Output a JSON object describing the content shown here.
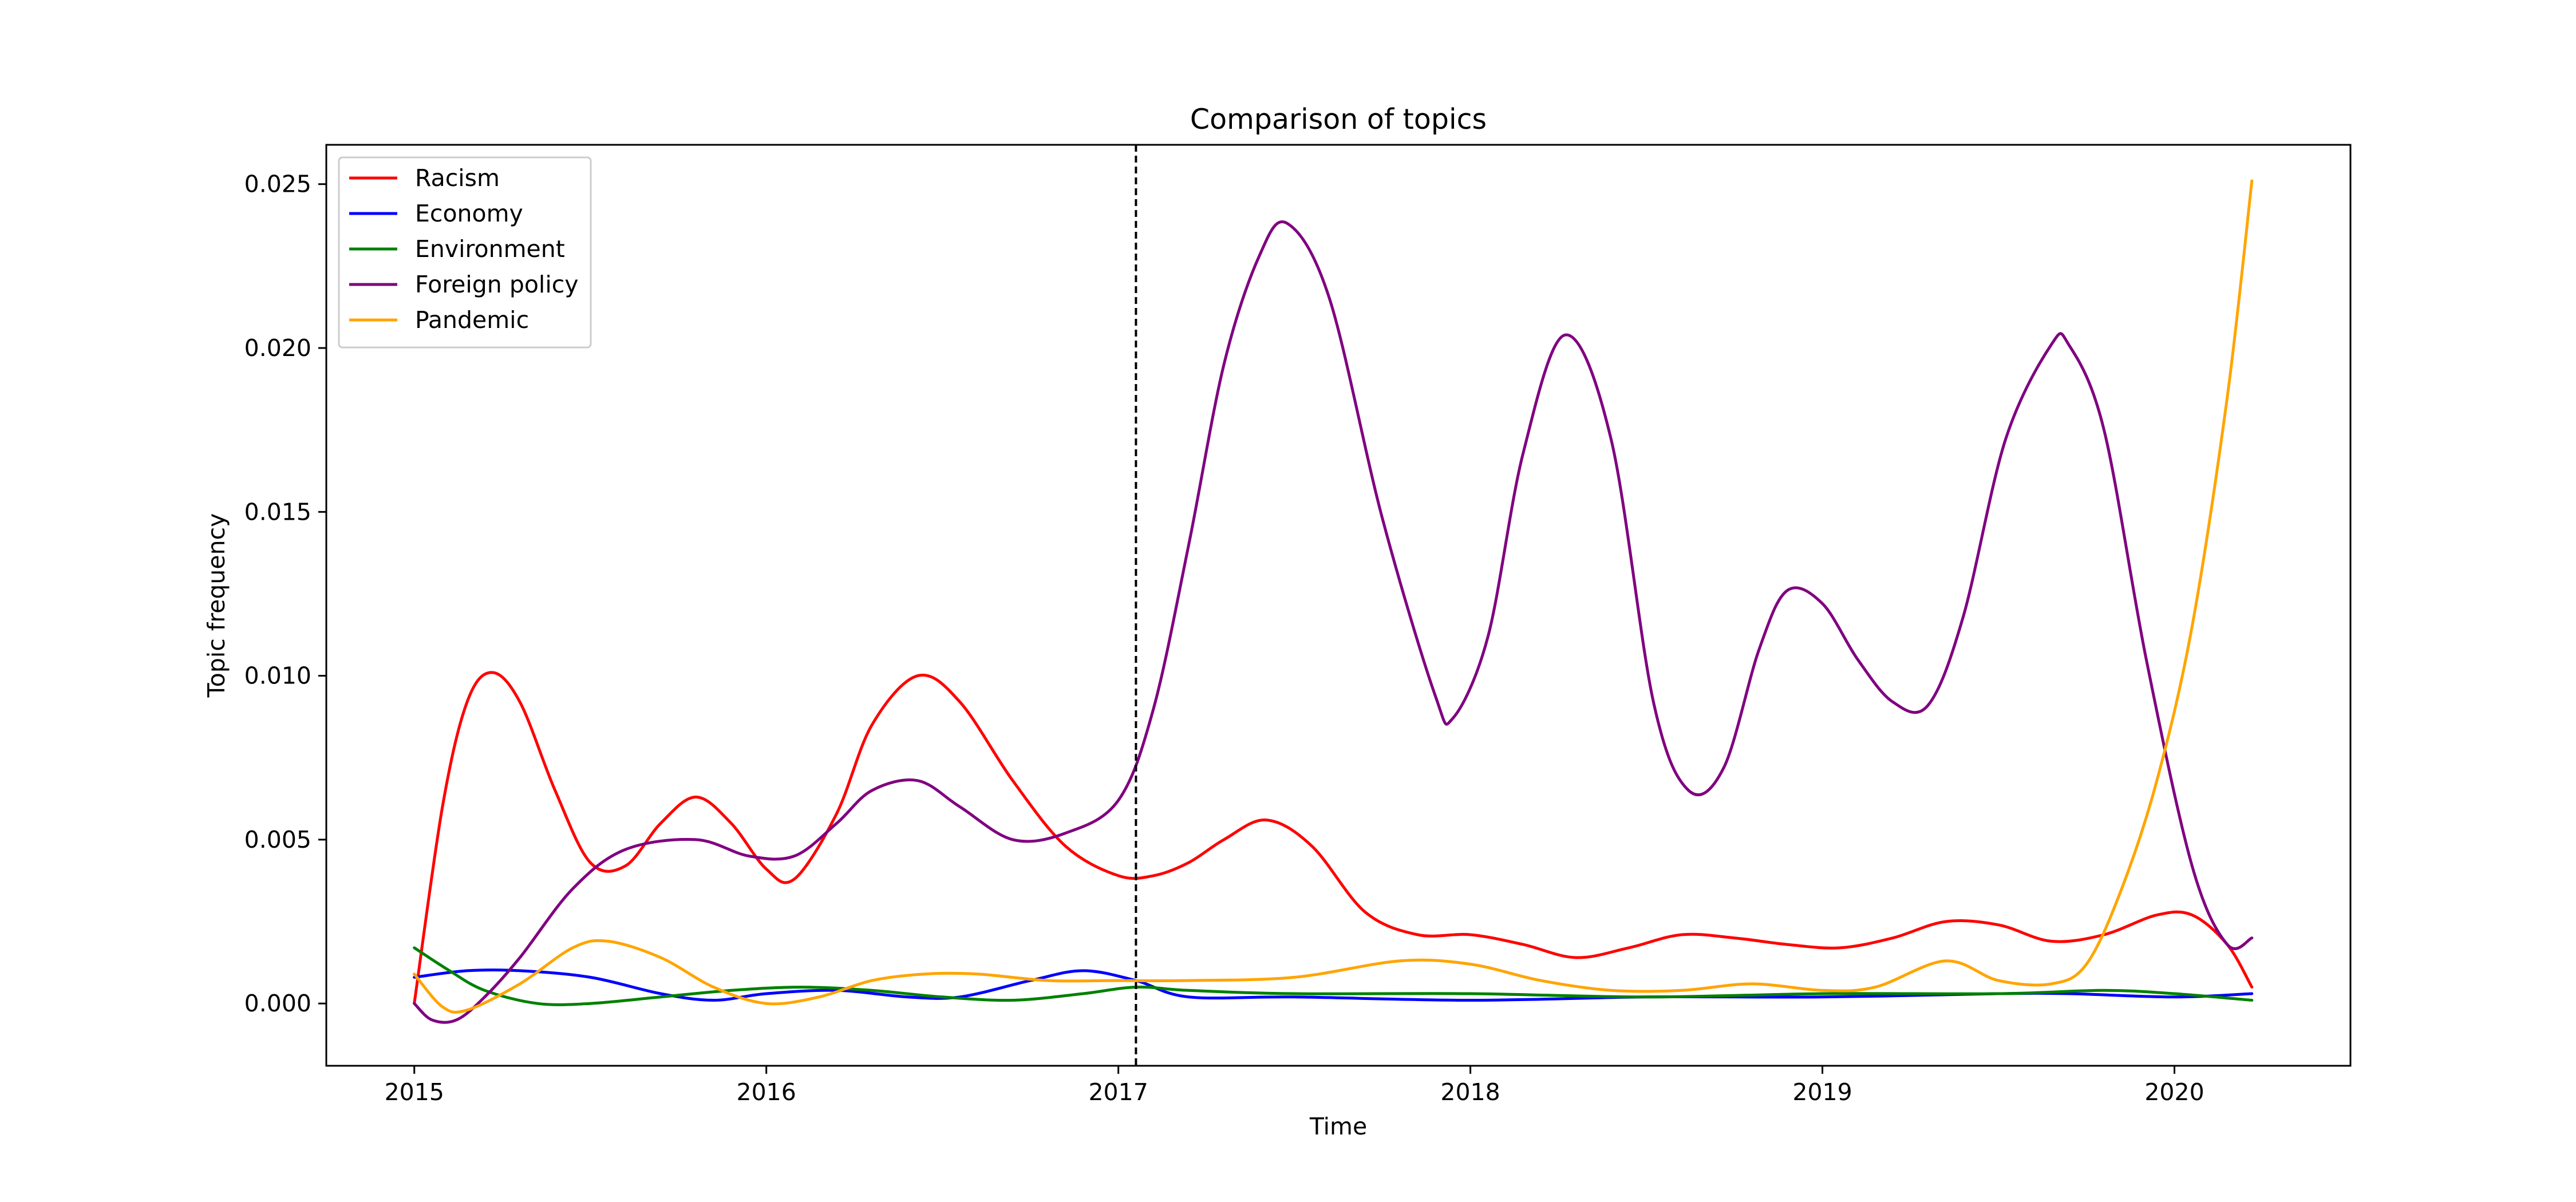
{
  "chart_data": {
    "type": "line",
    "title": "Comparison of topics",
    "xlabel": "Time",
    "ylabel": "Topic frequency",
    "xlim": [
      2014.75,
      2020.5
    ],
    "ylim": [
      -0.0019,
      0.0262
    ],
    "xticks": [
      2015,
      2016,
      2017,
      2018,
      2019,
      2020
    ],
    "xtick_labels": [
      "2015",
      "2016",
      "2017",
      "2018",
      "2019",
      "2020"
    ],
    "yticks": [
      0.0,
      0.005,
      0.01,
      0.015,
      0.02,
      0.025
    ],
    "ytick_labels": [
      "0.000",
      "0.005",
      "0.010",
      "0.015",
      "0.020",
      "0.025"
    ],
    "grid": false,
    "legend_position": "top-left",
    "vline": {
      "x": 2017.05,
      "style": "dashed",
      "color": "#000000"
    },
    "series": [
      {
        "name": "Racism",
        "color": "#ff0000",
        "x": [
          2015.0,
          2015.08,
          2015.15,
          2015.22,
          2015.3,
          2015.4,
          2015.5,
          2015.6,
          2015.7,
          2015.8,
          2015.9,
          2016.0,
          2016.08,
          2016.2,
          2016.3,
          2016.43,
          2016.55,
          2016.7,
          2016.85,
          2017.0,
          2017.1,
          2017.2,
          2017.3,
          2017.42,
          2017.55,
          2017.7,
          2017.85,
          2018.0,
          2018.15,
          2018.3,
          2018.45,
          2018.6,
          2018.75,
          2018.9,
          2019.05,
          2019.2,
          2019.35,
          2019.5,
          2019.65,
          2019.8,
          2019.95,
          2020.05,
          2020.15,
          2020.22
        ],
        "y": [
          0.0,
          0.006,
          0.0092,
          0.0101,
          0.0092,
          0.0065,
          0.0043,
          0.0042,
          0.0055,
          0.0063,
          0.0055,
          0.0041,
          0.0038,
          0.0058,
          0.0085,
          0.01,
          0.0092,
          0.0068,
          0.0048,
          0.0039,
          0.0039,
          0.0043,
          0.005,
          0.0056,
          0.0048,
          0.0028,
          0.0021,
          0.0021,
          0.0018,
          0.0014,
          0.0017,
          0.0021,
          0.002,
          0.0018,
          0.0017,
          0.002,
          0.0025,
          0.0024,
          0.0019,
          0.0021,
          0.0027,
          0.0027,
          0.0018,
          0.0005
        ]
      },
      {
        "name": "Economy",
        "color": "#0000ff",
        "x": [
          2015.0,
          2015.15,
          2015.3,
          2015.5,
          2015.7,
          2015.85,
          2016.0,
          2016.2,
          2016.4,
          2016.55,
          2016.75,
          2016.9,
          2017.05,
          2017.2,
          2017.5,
          2018.0,
          2018.5,
          2019.0,
          2019.5,
          2019.7,
          2020.0,
          2020.22
        ],
        "y": [
          0.0008,
          0.001,
          0.001,
          0.0008,
          0.0003,
          0.0001,
          0.0003,
          0.0004,
          0.0002,
          0.0002,
          0.0007,
          0.001,
          0.0007,
          0.0002,
          0.0002,
          0.0001,
          0.0002,
          0.0002,
          0.0003,
          0.0003,
          0.0002,
          0.0003
        ]
      },
      {
        "name": "Environment",
        "color": "#008000",
        "x": [
          2015.0,
          2015.1,
          2015.2,
          2015.35,
          2015.5,
          2015.7,
          2015.9,
          2016.1,
          2016.3,
          2016.5,
          2016.7,
          2016.9,
          2017.05,
          2017.2,
          2017.5,
          2018.0,
          2018.5,
          2019.0,
          2019.5,
          2019.8,
          2020.0,
          2020.22
        ],
        "y": [
          0.0017,
          0.001,
          0.0004,
          0.0,
          0.0,
          0.0002,
          0.0004,
          0.0005,
          0.0004,
          0.0002,
          0.0001,
          0.0003,
          0.0005,
          0.0004,
          0.0003,
          0.0003,
          0.0002,
          0.0003,
          0.0003,
          0.0004,
          0.0003,
          0.0001
        ]
      },
      {
        "name": "Foreign policy",
        "color": "#800080",
        "x": [
          2015.0,
          2015.05,
          2015.12,
          2015.2,
          2015.3,
          2015.45,
          2015.6,
          2015.8,
          2015.95,
          2016.08,
          2016.2,
          2016.3,
          2016.43,
          2016.55,
          2016.7,
          2016.85,
          2017.0,
          2017.1,
          2017.2,
          2017.3,
          2017.4,
          2017.48,
          2017.6,
          2017.75,
          2017.9,
          2017.95,
          2018.05,
          2018.15,
          2018.27,
          2018.4,
          2018.52,
          2018.62,
          2018.72,
          2018.82,
          2018.9,
          2019.0,
          2019.1,
          2019.2,
          2019.3,
          2019.4,
          2019.52,
          2019.65,
          2019.7,
          2019.8,
          2019.92,
          2020.05,
          2020.15,
          2020.22
        ],
        "y": [
          0.0,
          -0.0005,
          -0.0005,
          0.0002,
          0.0014,
          0.0035,
          0.0047,
          0.005,
          0.0045,
          0.0045,
          0.0055,
          0.0065,
          0.0068,
          0.006,
          0.005,
          0.0052,
          0.0062,
          0.009,
          0.014,
          0.0195,
          0.0228,
          0.0238,
          0.0215,
          0.0148,
          0.0094,
          0.0087,
          0.0112,
          0.0168,
          0.0204,
          0.0172,
          0.0092,
          0.0065,
          0.0072,
          0.0108,
          0.0126,
          0.0122,
          0.0105,
          0.0092,
          0.0091,
          0.0118,
          0.0172,
          0.0201,
          0.0201,
          0.0175,
          0.0105,
          0.0042,
          0.0018,
          0.002
        ]
      },
      {
        "name": "Pandemic",
        "color": "#ffa500",
        "x": [
          2015.0,
          2015.08,
          2015.15,
          2015.3,
          2015.45,
          2015.55,
          2015.7,
          2015.85,
          2016.0,
          2016.15,
          2016.3,
          2016.45,
          2016.6,
          2016.8,
          2017.0,
          2017.2,
          2017.5,
          2017.8,
          2018.0,
          2018.2,
          2018.4,
          2018.6,
          2018.8,
          2019.0,
          2019.15,
          2019.35,
          2019.5,
          2019.65,
          2019.75,
          2019.85,
          2019.95,
          2020.05,
          2020.15,
          2020.22
        ],
        "y": [
          0.0009,
          -0.0001,
          -0.0002,
          0.0006,
          0.0017,
          0.0019,
          0.0014,
          0.0005,
          0.0,
          0.0002,
          0.0007,
          0.0009,
          0.0009,
          0.0007,
          0.0007,
          0.0007,
          0.0008,
          0.0013,
          0.0012,
          0.0007,
          0.0004,
          0.0004,
          0.0006,
          0.0004,
          0.0005,
          0.0013,
          0.0007,
          0.0006,
          0.0012,
          0.0035,
          0.0068,
          0.0115,
          0.0185,
          0.0251
        ]
      }
    ]
  }
}
